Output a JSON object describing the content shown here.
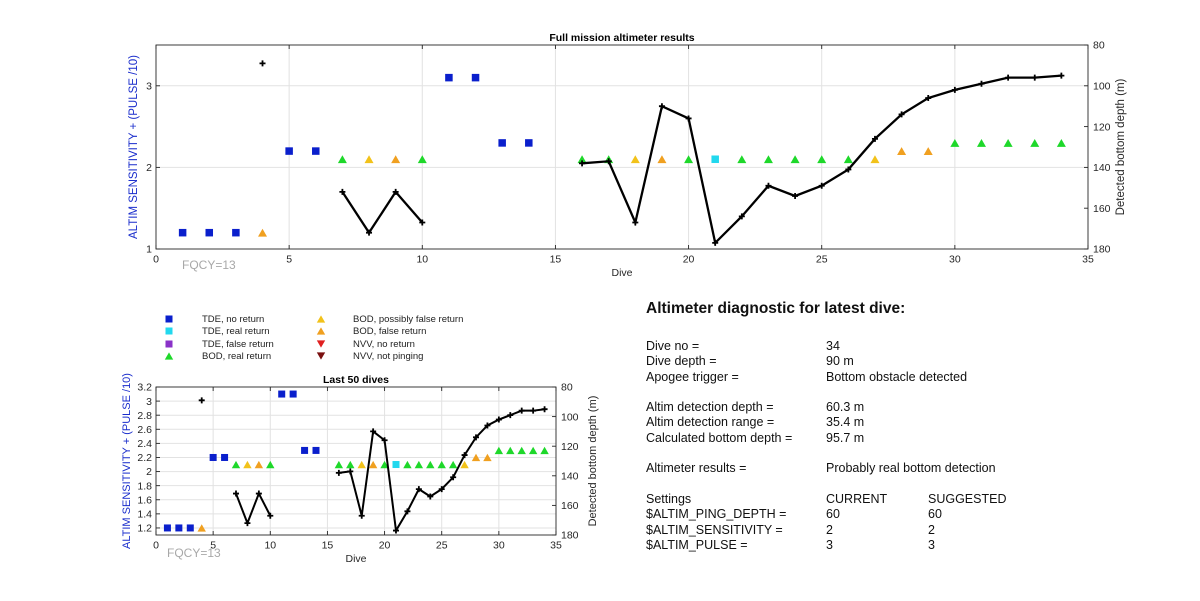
{
  "figure": {
    "footnote": "FQCY=13"
  },
  "chart_data": [
    {
      "type": "scatter",
      "title": "Full mission altimeter results",
      "xlabel": "Dive",
      "ylabel": "ALTIM SENSITIVITY + (PULSE /10)",
      "y2label": "Detected bottom depth (m)",
      "xlim": [
        0,
        35
      ],
      "ylim": [
        1,
        3.5
      ],
      "y2lim": [
        80,
        180
      ],
      "y2_reversed": true,
      "x_ticks": [
        0,
        5,
        10,
        15,
        20,
        25,
        30,
        35
      ],
      "y_ticks": [
        1,
        2,
        3
      ],
      "y2_ticks": [
        80,
        100,
        120,
        140,
        160,
        180
      ],
      "grid": true
    },
    {
      "type": "scatter",
      "title": "Last 50 dives",
      "xlabel": "Dive",
      "ylabel": "ALTIM SENSITIVITY + (PULSE /10)",
      "y2label": "Detected bottom depth (m)",
      "xlim": [
        0,
        35
      ],
      "ylim": [
        1.1,
        3.2
      ],
      "y2lim": [
        80,
        180
      ],
      "y2_reversed": true,
      "x_ticks": [
        0,
        5,
        10,
        15,
        20,
        25,
        30,
        35
      ],
      "y_ticks": [
        1.2,
        1.4,
        1.6,
        1.8,
        2,
        2.2,
        2.4,
        2.6,
        2.8,
        3,
        3.2
      ],
      "y2_ticks": [
        80,
        100,
        120,
        140,
        160,
        180
      ],
      "grid": true
    }
  ],
  "altimeter_points": [
    {
      "dive": 1,
      "value": 1.2,
      "category": "tde_no"
    },
    {
      "dive": 2,
      "value": 1.2,
      "category": "tde_no"
    },
    {
      "dive": 3,
      "value": 1.2,
      "category": "tde_no"
    },
    {
      "dive": 4,
      "value": 1.2,
      "category": "bod_false"
    },
    {
      "dive": 5,
      "value": 2.2,
      "category": "tde_no"
    },
    {
      "dive": 6,
      "value": 2.2,
      "category": "tde_no"
    },
    {
      "dive": 7,
      "value": 2.1,
      "category": "bod_real"
    },
    {
      "dive": 8,
      "value": 2.1,
      "category": "bod_possible"
    },
    {
      "dive": 9,
      "value": 2.1,
      "category": "bod_false"
    },
    {
      "dive": 10,
      "value": 2.1,
      "category": "bod_real"
    },
    {
      "dive": 11,
      "value": 3.1,
      "category": "tde_no"
    },
    {
      "dive": 12,
      "value": 3.1,
      "category": "tde_no"
    },
    {
      "dive": 13,
      "value": 2.3,
      "category": "tde_no"
    },
    {
      "dive": 14,
      "value": 2.3,
      "category": "tde_no"
    },
    {
      "dive": 16,
      "value": 2.1,
      "category": "bod_real"
    },
    {
      "dive": 17,
      "value": 2.1,
      "category": "bod_real"
    },
    {
      "dive": 18,
      "value": 2.1,
      "category": "bod_possible"
    },
    {
      "dive": 19,
      "value": 2.1,
      "category": "bod_false"
    },
    {
      "dive": 20,
      "value": 2.1,
      "category": "bod_real"
    },
    {
      "dive": 21,
      "value": 2.1,
      "category": "tde_real"
    },
    {
      "dive": 22,
      "value": 2.1,
      "category": "bod_real"
    },
    {
      "dive": 23,
      "value": 2.1,
      "category": "bod_real"
    },
    {
      "dive": 24,
      "value": 2.1,
      "category": "bod_real"
    },
    {
      "dive": 25,
      "value": 2.1,
      "category": "bod_real"
    },
    {
      "dive": 26,
      "value": 2.1,
      "category": "bod_real"
    },
    {
      "dive": 27,
      "value": 2.1,
      "category": "bod_possible"
    },
    {
      "dive": 28,
      "value": 2.2,
      "category": "bod_false"
    },
    {
      "dive": 29,
      "value": 2.2,
      "category": "bod_false"
    },
    {
      "dive": 30,
      "value": 2.3,
      "category": "bod_real"
    },
    {
      "dive": 31,
      "value": 2.3,
      "category": "bod_real"
    },
    {
      "dive": 32,
      "value": 2.3,
      "category": "bod_real"
    },
    {
      "dive": 33,
      "value": 2.3,
      "category": "bod_real"
    },
    {
      "dive": 34,
      "value": 2.3,
      "category": "bod_real"
    }
  ],
  "bottom_depth": {
    "isolated": [
      {
        "dive": 4,
        "depth": 89
      }
    ],
    "segments": [
      [
        [
          7,
          152
        ],
        [
          8,
          172
        ],
        [
          9,
          152
        ],
        [
          10,
          167
        ]
      ],
      [
        [
          16,
          138
        ],
        [
          17,
          137
        ],
        [
          18,
          167
        ],
        [
          19,
          110
        ],
        [
          20,
          116
        ],
        [
          21,
          177
        ],
        [
          22,
          164
        ],
        [
          23,
          149
        ],
        [
          24,
          154
        ],
        [
          25,
          149
        ],
        [
          26,
          141
        ],
        [
          27,
          126
        ],
        [
          28,
          114
        ],
        [
          29,
          106
        ],
        [
          30,
          102
        ],
        [
          31,
          99
        ],
        [
          32,
          96
        ],
        [
          33,
          96
        ],
        [
          34,
          95
        ]
      ]
    ]
  },
  "legend": {
    "items": [
      {
        "key": "tde_no",
        "label": "TDE, no return",
        "shape": "square",
        "color": "#0a1fcc"
      },
      {
        "key": "tde_real",
        "label": "TDE, real return",
        "shape": "square",
        "color": "#22d8ee"
      },
      {
        "key": "tde_false",
        "label": "TDE, false return",
        "shape": "square",
        "color": "#8a32c8"
      },
      {
        "key": "bod_real",
        "label": "BOD, real return",
        "shape": "triangle-up",
        "color": "#1ed82a"
      },
      {
        "key": "bod_possible",
        "label": "BOD, possibly false return",
        "shape": "triangle-up",
        "color": "#f2c21a"
      },
      {
        "key": "bod_false",
        "label": "BOD, false return",
        "shape": "triangle-up",
        "color": "#f0a020"
      },
      {
        "key": "nvv_no",
        "label": "NVV, no return",
        "shape": "triangle-down",
        "color": "#e02020"
      },
      {
        "key": "nvv_not",
        "label": "NVV, not pinging",
        "shape": "triangle-down",
        "color": "#7a1010"
      }
    ]
  },
  "diagnostic": {
    "title": "Altimeter diagnostic for latest dive:",
    "dive_no_label": "Dive no =",
    "dive_no": "34",
    "dive_depth_label": "Dive depth =",
    "dive_depth": "90 m",
    "apogee_label": "Apogee trigger =",
    "apogee": "Bottom obstacle detected",
    "detect_depth_label": "Altim detection depth =",
    "detect_depth": "60.3 m",
    "detect_range_label": "Altim detection range =",
    "detect_range": "35.4 m",
    "calc_depth_label": "Calculated bottom depth =",
    "calc_depth": "95.7 m",
    "results_label": "Altimeter results =",
    "results": "Probably real bottom detection",
    "settings_label": "Settings",
    "current_label": "CURRENT",
    "suggested_label": "SUGGESTED",
    "settings": [
      {
        "name": "$ALTIM_PING_DEPTH =",
        "current": "60",
        "suggested": "60"
      },
      {
        "name": "$ALTIM_SENSITIVITY =",
        "current": "2",
        "suggested": "2"
      },
      {
        "name": "$ALTIM_PULSE =",
        "current": "3",
        "suggested": "3"
      }
    ]
  }
}
